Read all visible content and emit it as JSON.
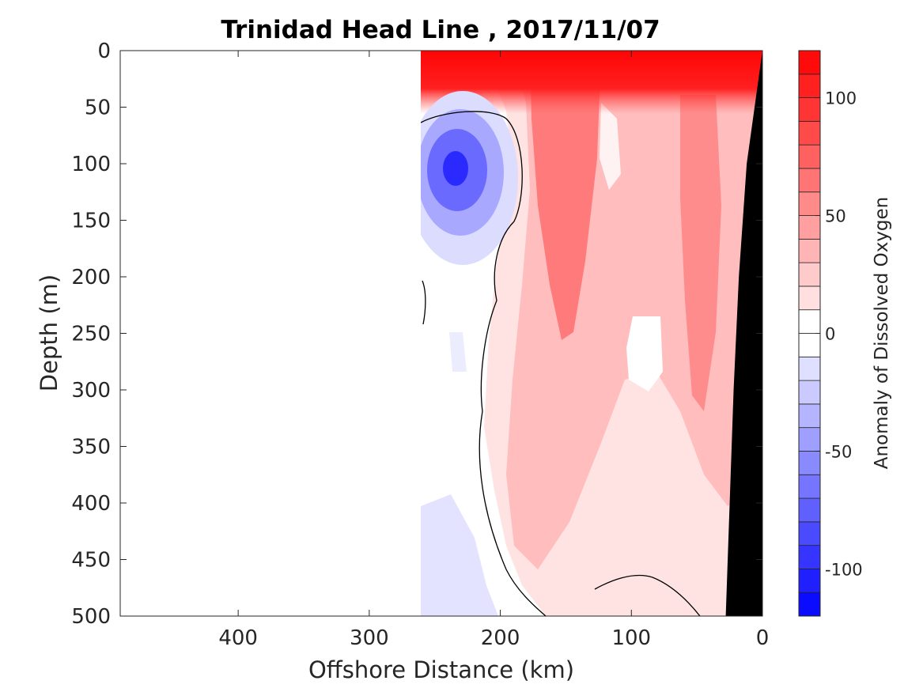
{
  "chart_data": {
    "type": "heatmap",
    "subtype": "filled-contour-section",
    "title": "Trinidad Head Line , 2017/11/07",
    "xlabel": "Offshore Distance (km)",
    "ylabel": "Depth (m)",
    "xlim": [
      490,
      0
    ],
    "ylim": [
      500,
      0
    ],
    "x_reversed": true,
    "y_reversed": true,
    "x_ticks": [
      400,
      300,
      200,
      100,
      0
    ],
    "x_tick_labels": [
      "400",
      "300",
      "200",
      "100",
      "0"
    ],
    "y_ticks": [
      0,
      50,
      100,
      150,
      200,
      250,
      300,
      350,
      400,
      450,
      500
    ],
    "y_tick_labels": [
      "0",
      "50",
      "100",
      "150",
      "200",
      "250",
      "300",
      "350",
      "400",
      "450",
      "500"
    ],
    "data_extent_km": [
      0,
      262
    ],
    "bathymetry_color": "#000000",
    "bathymetry": [
      [
        0,
        0
      ],
      [
        12,
        100
      ],
      [
        18,
        200
      ],
      [
        22,
        300
      ],
      [
        25,
        400
      ],
      [
        28,
        500
      ]
    ],
    "zero_contour_color": "#000000",
    "colorbar": {
      "label": "Anomaly of Dissolved Oxygen",
      "lim": [
        -120,
        120
      ],
      "step": 10,
      "ticks": [
        100,
        50,
        0,
        -50,
        -100
      ],
      "tick_labels": [
        "100",
        "50",
        "0",
        "-50",
        "-100"
      ],
      "positive_color": "#ff0000",
      "negative_color": "#0000ff",
      "neutral_color": "#ffffff"
    },
    "features": [
      {
        "kind": "positive-anomaly",
        "x_km": [
          0,
          262
        ],
        "depth_m": [
          0,
          40
        ],
        "peak_value": 115
      },
      {
        "kind": "negative-anomaly-core",
        "x_km": [
          235,
          235
        ],
        "depth_m": [
          105,
          105
        ],
        "peak_value": -100
      },
      {
        "kind": "positive-anomaly-tongue",
        "x_km": [
          150,
          150
        ],
        "depth_m": [
          60,
          260
        ],
        "peak_value": 70
      },
      {
        "kind": "positive-anomaly-tongue",
        "x_km": [
          50,
          50
        ],
        "depth_m": [
          120,
          270
        ],
        "peak_value": 65
      },
      {
        "kind": "positive-anomaly-near-zero-core",
        "x_km": [
          100,
          100
        ],
        "depth_m": [
          280,
          300
        ],
        "peak_value": 5
      },
      {
        "kind": "negative-anomaly-weak",
        "x_km": [
          230,
          230
        ],
        "depth_m": [
          480,
          500
        ],
        "peak_value": -25
      }
    ]
  }
}
